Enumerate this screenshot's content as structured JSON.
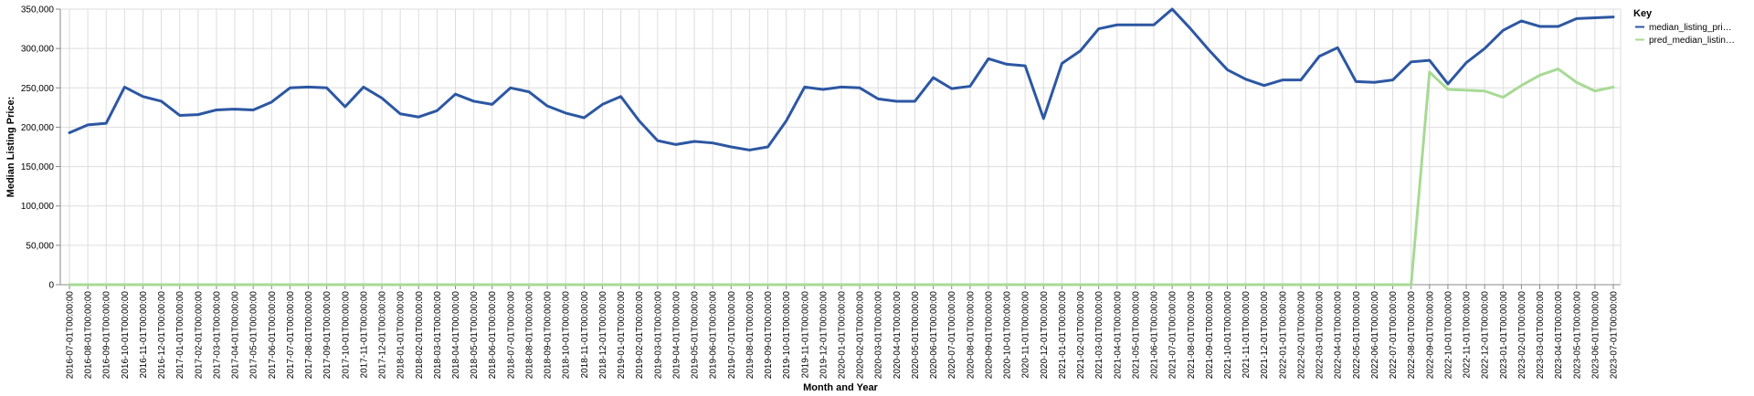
{
  "chart_data": {
    "type": "line",
    "xlabel": "Month and Year",
    "ylabel": "Median Listing Price:",
    "ylim": [
      0,
      350000
    ],
    "y_ticks": [
      0,
      50000,
      100000,
      150000,
      200000,
      250000,
      300000,
      350000
    ],
    "y_tick_labels": [
      "0",
      "50,000",
      "100,000",
      "150,000",
      "200,000",
      "250,000",
      "300,000",
      "350,000"
    ],
    "grid": true,
    "legend": {
      "title": "Key",
      "placement": "top-right"
    },
    "categories": [
      "2016-07-01T00:00:00",
      "2016-08-01T00:00:00",
      "2016-09-01T00:00:00",
      "2016-10-01T00:00:00",
      "2016-11-01T00:00:00",
      "2016-12-01T00:00:00",
      "2017-01-01T00:00:00",
      "2017-02-01T00:00:00",
      "2017-03-01T00:00:00",
      "2017-04-01T00:00:00",
      "2017-05-01T00:00:00",
      "2017-06-01T00:00:00",
      "2017-07-01T00:00:00",
      "2017-08-01T00:00:00",
      "2017-09-01T00:00:00",
      "2017-10-01T00:00:00",
      "2017-11-01T00:00:00",
      "2017-12-01T00:00:00",
      "2018-01-01T00:00:00",
      "2018-02-01T00:00:00",
      "2018-03-01T00:00:00",
      "2018-04-01T00:00:00",
      "2018-05-01T00:00:00",
      "2018-06-01T00:00:00",
      "2018-07-01T00:00:00",
      "2018-08-01T00:00:00",
      "2018-09-01T00:00:00",
      "2018-10-01T00:00:00",
      "2018-11-01T00:00:00",
      "2018-12-01T00:00:00",
      "2019-01-01T00:00:00",
      "2019-02-01T00:00:00",
      "2019-03-01T00:00:00",
      "2019-04-01T00:00:00",
      "2019-05-01T00:00:00",
      "2019-06-01T00:00:00",
      "2019-07-01T00:00:00",
      "2019-08-01T00:00:00",
      "2019-09-01T00:00:00",
      "2019-10-01T00:00:00",
      "2019-11-01T00:00:00",
      "2019-12-01T00:00:00",
      "2020-01-01T00:00:00",
      "2020-02-01T00:00:00",
      "2020-03-01T00:00:00",
      "2020-04-01T00:00:00",
      "2020-05-01T00:00:00",
      "2020-06-01T00:00:00",
      "2020-07-01T00:00:00",
      "2020-08-01T00:00:00",
      "2020-09-01T00:00:00",
      "2020-10-01T00:00:00",
      "2020-11-01T00:00:00",
      "2020-12-01T00:00:00",
      "2021-01-01T00:00:00",
      "2021-02-01T00:00:00",
      "2021-03-01T00:00:00",
      "2021-04-01T00:00:00",
      "2021-05-01T00:00:00",
      "2021-06-01T00:00:00",
      "2021-07-01T00:00:00",
      "2021-08-01T00:00:00",
      "2021-09-01T00:00:00",
      "2021-10-01T00:00:00",
      "2021-11-01T00:00:00",
      "2021-12-01T00:00:00",
      "2022-01-01T00:00:00",
      "2022-02-01T00:00:00",
      "2022-03-01T00:00:00",
      "2022-04-01T00:00:00",
      "2022-05-01T00:00:00",
      "2022-06-01T00:00:00",
      "2022-07-01T00:00:00",
      "2022-08-01T00:00:00",
      "2022-09-01T00:00:00",
      "2022-10-01T00:00:00",
      "2022-11-01T00:00:00",
      "2022-12-01T00:00:00",
      "2023-01-01T00:00:00",
      "2023-02-01T00:00:00",
      "2023-03-01T00:00:00",
      "2023-04-01T00:00:00",
      "2023-05-01T00:00:00",
      "2023-06-01T00:00:00",
      "2023-07-01T00:00:00"
    ],
    "series": [
      {
        "name": "median_listing_pri…",
        "color": "#2c57a2",
        "values": [
          193000,
          203000,
          205000,
          251000,
          239000,
          233000,
          215000,
          216000,
          222000,
          223000,
          222000,
          232000,
          250000,
          251000,
          250000,
          226000,
          251000,
          237000,
          217000,
          213000,
          221000,
          242000,
          233000,
          229000,
          250000,
          245000,
          227000,
          218000,
          212000,
          229000,
          239000,
          208000,
          183000,
          178000,
          182000,
          180000,
          175000,
          171000,
          175000,
          208000,
          251000,
          248000,
          251000,
          250000,
          236000,
          233000,
          233000,
          263000,
          249000,
          252000,
          287000,
          280000,
          278000,
          211000,
          281000,
          297000,
          325000,
          330000,
          330000,
          330000,
          350000,
          325000,
          298000,
          273000,
          261000,
          253000,
          260000,
          260000,
          290000,
          301000,
          258000,
          257000,
          260000,
          283000,
          285000,
          255000,
          282000,
          300000,
          323000,
          335000,
          328000,
          328000,
          338000,
          339000,
          340000
        ]
      },
      {
        "name": "pred_median_listin…",
        "color": "#a7da95",
        "values": [
          0,
          0,
          0,
          0,
          0,
          0,
          0,
          0,
          0,
          0,
          0,
          0,
          0,
          0,
          0,
          0,
          0,
          0,
          0,
          0,
          0,
          0,
          0,
          0,
          0,
          0,
          0,
          0,
          0,
          0,
          0,
          0,
          0,
          0,
          0,
          0,
          0,
          0,
          0,
          0,
          0,
          0,
          0,
          0,
          0,
          0,
          0,
          0,
          0,
          0,
          0,
          0,
          0,
          0,
          0,
          0,
          0,
          0,
          0,
          0,
          0,
          0,
          0,
          0,
          0,
          0,
          0,
          0,
          0,
          0,
          0,
          0,
          0,
          0,
          270000,
          248000,
          247000,
          246000,
          238000,
          253000,
          266000,
          274000,
          257000,
          246000,
          251000
        ]
      }
    ]
  }
}
